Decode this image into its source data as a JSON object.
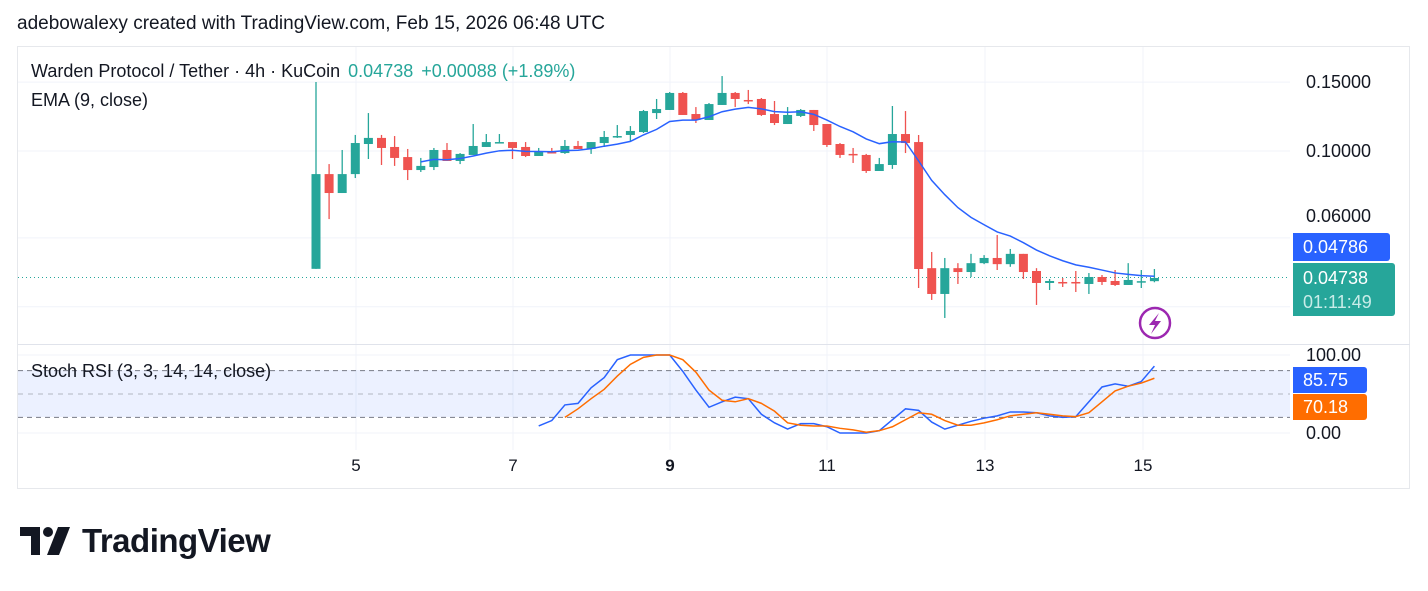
{
  "attribution": "adebowalexy created with TradingView.com, Feb 15, 2026 06:48 UTC",
  "legend": {
    "symbol": "Warden Protocol / Tether · 4h · KuCoin",
    "last": "0.04738",
    "change": "+0.00088 (+1.89%)",
    "ema": "EMA (9, close)",
    "stoch": "Stoch RSI (3, 3, 14, 14, close)"
  },
  "price_axis": {
    "ticks": [
      "0.15000",
      "0.10000",
      "0.06000"
    ],
    "ema_tag": "0.04786",
    "price_tag": "0.04738",
    "countdown": "01:11:49"
  },
  "stoch_axis": {
    "ticks": [
      "100.00",
      "0.00"
    ],
    "k_tag": "85.75",
    "d_tag": "70.18"
  },
  "time_axis": {
    "labels": [
      "5",
      "7",
      "9",
      "11",
      "13",
      "15"
    ],
    "bold": "9"
  },
  "logo": "TradingView",
  "colors": {
    "up": "#26a69a",
    "down": "#ef5350",
    "ema": "#2962ff",
    "stoch_k": "#2962ff",
    "stoch_d": "#ff6d00",
    "ema_tag": "#2962ff",
    "price_tag": "#26a69a",
    "lightning": "#9c27b0"
  },
  "chart_data": [
    {
      "type": "candlestick",
      "interval": "4h",
      "scale": "log",
      "x_start": "Feb 4 12:00",
      "ylim": [
        0.035,
        0.16
      ],
      "grid": true,
      "ohlc": [
        [
          0.05,
          0.1501,
          0.05,
          0.0873
        ],
        [
          0.0873,
          0.0926,
          0.067,
          0.0781
        ],
        [
          0.0781,
          0.1006,
          0.0781,
          0.0873
        ],
        [
          0.0873,
          0.1099,
          0.0853,
          0.1048
        ],
        [
          0.1042,
          0.125,
          0.0954,
          0.108
        ],
        [
          0.108,
          0.1099,
          0.0921,
          0.1018
        ],
        [
          0.1024,
          0.1092,
          0.0916,
          0.096
        ],
        [
          0.0965,
          0.1012,
          0.0843,
          0.0894
        ],
        [
          0.0894,
          0.096,
          0.0884,
          0.0916
        ],
        [
          0.091,
          0.1018,
          0.0894,
          0.1006
        ],
        [
          0.1006,
          0.1048,
          0.0943,
          0.0943
        ],
        [
          0.0943,
          0.0988,
          0.0926,
          0.0983
        ],
        [
          0.0977,
          0.1172,
          0.0977,
          0.103
        ],
        [
          0.1024,
          0.1105,
          0.1024,
          0.1054
        ],
        [
          0.1048,
          0.1105,
          0.1048,
          0.1054
        ],
        [
          0.1054,
          0.1054,
          0.0954,
          0.1018
        ],
        [
          0.1024,
          0.1054,
          0.0965,
          0.0971
        ],
        [
          0.0971,
          0.1018,
          0.0971,
          0.0994
        ],
        [
          0.0994,
          0.1018,
          0.0988,
          0.099
        ],
        [
          0.0988,
          0.1067,
          0.0983,
          0.103
        ],
        [
          0.103,
          0.1061,
          0.1012,
          0.1012
        ],
        [
          0.1012,
          0.1054,
          0.0983,
          0.1054
        ],
        [
          0.1048,
          0.1125,
          0.1024,
          0.1086
        ],
        [
          0.1086,
          0.1165,
          0.108,
          0.1092
        ],
        [
          0.1099,
          0.1158,
          0.1061,
          0.1125
        ],
        [
          0.1118,
          0.1273,
          0.1112,
          0.1265
        ],
        [
          0.125,
          0.1358,
          0.1207,
          0.128
        ],
        [
          0.1273,
          0.1415,
          0.1273,
          0.1407
        ],
        [
          0.1407,
          0.1415,
          0.1236,
          0.1236
        ],
        [
          0.1243,
          0.1295,
          0.1179,
          0.12
        ],
        [
          0.12,
          0.1326,
          0.12,
          0.1318
        ],
        [
          0.1311,
          0.1554,
          0.1311,
          0.1407
        ],
        [
          0.1407,
          0.1415,
          0.1295,
          0.1358
        ],
        [
          0.135,
          0.1432,
          0.1318,
          0.1346
        ],
        [
          0.1358,
          0.1366,
          0.1229,
          0.1236
        ],
        [
          0.1243,
          0.1342,
          0.1165,
          0.1179
        ],
        [
          0.1172,
          0.1295,
          0.1172,
          0.1236
        ],
        [
          0.1229,
          0.128,
          0.1221,
          0.1273
        ],
        [
          0.1273,
          0.1273,
          0.1125,
          0.1165
        ],
        [
          0.1172,
          0.1172,
          0.1024,
          0.1036
        ],
        [
          0.1042,
          0.1048,
          0.096,
          0.0977
        ],
        [
          0.0983,
          0.1018,
          0.0932,
          0.0978
        ],
        [
          0.0977,
          0.0983,
          0.0879,
          0.0889
        ],
        [
          0.0889,
          0.096,
          0.0889,
          0.0926
        ],
        [
          0.0921,
          0.1303,
          0.09,
          0.1105
        ],
        [
          0.1105,
          0.1265,
          0.0988,
          0.1048
        ],
        [
          0.1054,
          0.1099,
          0.04467,
          0.04995
        ],
        [
          0.0502,
          0.0552,
          0.04164,
          0.04313
        ],
        [
          0.04313,
          0.0533,
          0.03745,
          0.0502
        ],
        [
          0.0502,
          0.0517,
          0.04574,
          0.04907
        ],
        [
          0.04907,
          0.0546,
          0.04766,
          0.0517
        ],
        [
          0.0517,
          0.0542,
          0.0514,
          0.0533
        ],
        [
          0.0533,
          0.061,
          0.04966,
          0.0514
        ],
        [
          0.0514,
          0.0562,
          0.0506,
          0.0546
        ],
        [
          0.0546,
          0.0546,
          0.0471,
          0.04907
        ],
        [
          0.04937,
          0.0502,
          0.04043,
          0.04601
        ],
        [
          0.04601,
          0.0471,
          0.04415,
          0.04655
        ],
        [
          0.04628,
          0.04738,
          0.04493,
          0.0462
        ],
        [
          0.04628,
          0.04937,
          0.04363,
          0.0462
        ],
        [
          0.04574,
          0.04878,
          0.04313,
          0.04766
        ],
        [
          0.04766,
          0.04822,
          0.04547,
          0.04628
        ],
        [
          0.04655,
          0.04966,
          0.0452,
          0.04547
        ],
        [
          0.04547,
          0.0517,
          0.04547,
          0.04683
        ],
        [
          0.0464,
          0.04966,
          0.04467,
          0.0465
        ],
        [
          0.0465,
          0.04995,
          0.0462,
          0.04738
        ]
      ],
      "ema_period": 9,
      "ema_last": 0.04786,
      "price_ticks": [
        0.15,
        0.1,
        0.06,
        0.04
      ]
    },
    {
      "type": "line",
      "ylim": [
        0,
        100
      ],
      "bands": [
        80,
        50,
        20
      ],
      "series": [
        {
          "name": "K",
          "values": [
            null,
            null,
            null,
            null,
            null,
            null,
            null,
            null,
            null,
            null,
            null,
            null,
            null,
            null,
            null,
            null,
            null,
            9,
            16,
            36,
            38,
            58,
            71,
            94,
            100,
            100,
            100,
            100,
            79,
            55,
            33,
            40,
            46,
            44,
            24,
            13,
            5,
            12,
            12,
            8,
            0,
            0,
            0,
            3,
            17,
            31,
            29,
            14,
            5,
            10,
            15,
            19,
            22,
            27,
            27,
            26,
            22,
            20,
            21,
            40,
            59,
            63,
            60,
            66,
            85.75
          ]
        },
        {
          "name": "D",
          "values": [
            null,
            null,
            null,
            null,
            null,
            null,
            null,
            null,
            null,
            null,
            null,
            null,
            null,
            null,
            null,
            null,
            null,
            null,
            null,
            20,
            31,
            44,
            56,
            73,
            88,
            97,
            100,
            100,
            94,
            78,
            55,
            42,
            40,
            44,
            38,
            28,
            13,
            10,
            9,
            9,
            6,
            4,
            1,
            3,
            8,
            17,
            26,
            24,
            16,
            10,
            10,
            13,
            17,
            22,
            24,
            26,
            24,
            22,
            21,
            26,
            40,
            54,
            60,
            64,
            70.18
          ]
        }
      ]
    }
  ]
}
